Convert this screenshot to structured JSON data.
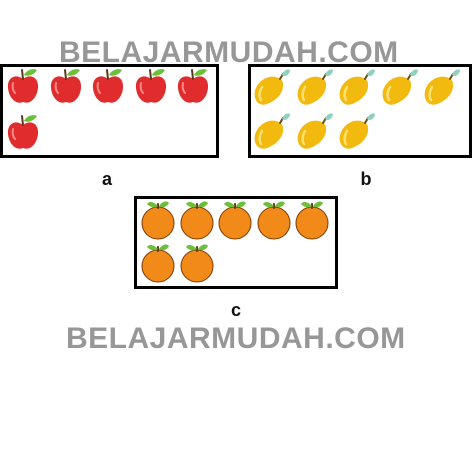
{
  "watermark": "BELAJARMUDAH.COM",
  "groups": [
    {
      "label": "a",
      "fruit": "apple-icon",
      "count": 6
    },
    {
      "label": "b",
      "fruit": "mango-icon",
      "count": 8
    },
    {
      "label": "c",
      "fruit": "orange-icon",
      "count": 7
    }
  ],
  "colors": {
    "apple": "#e02c2c",
    "mango": "#f2b90f",
    "orange": "#f28a1a",
    "leaf": "#6cbf3a",
    "watermark": "#8c8c8c",
    "border": "#000000"
  }
}
